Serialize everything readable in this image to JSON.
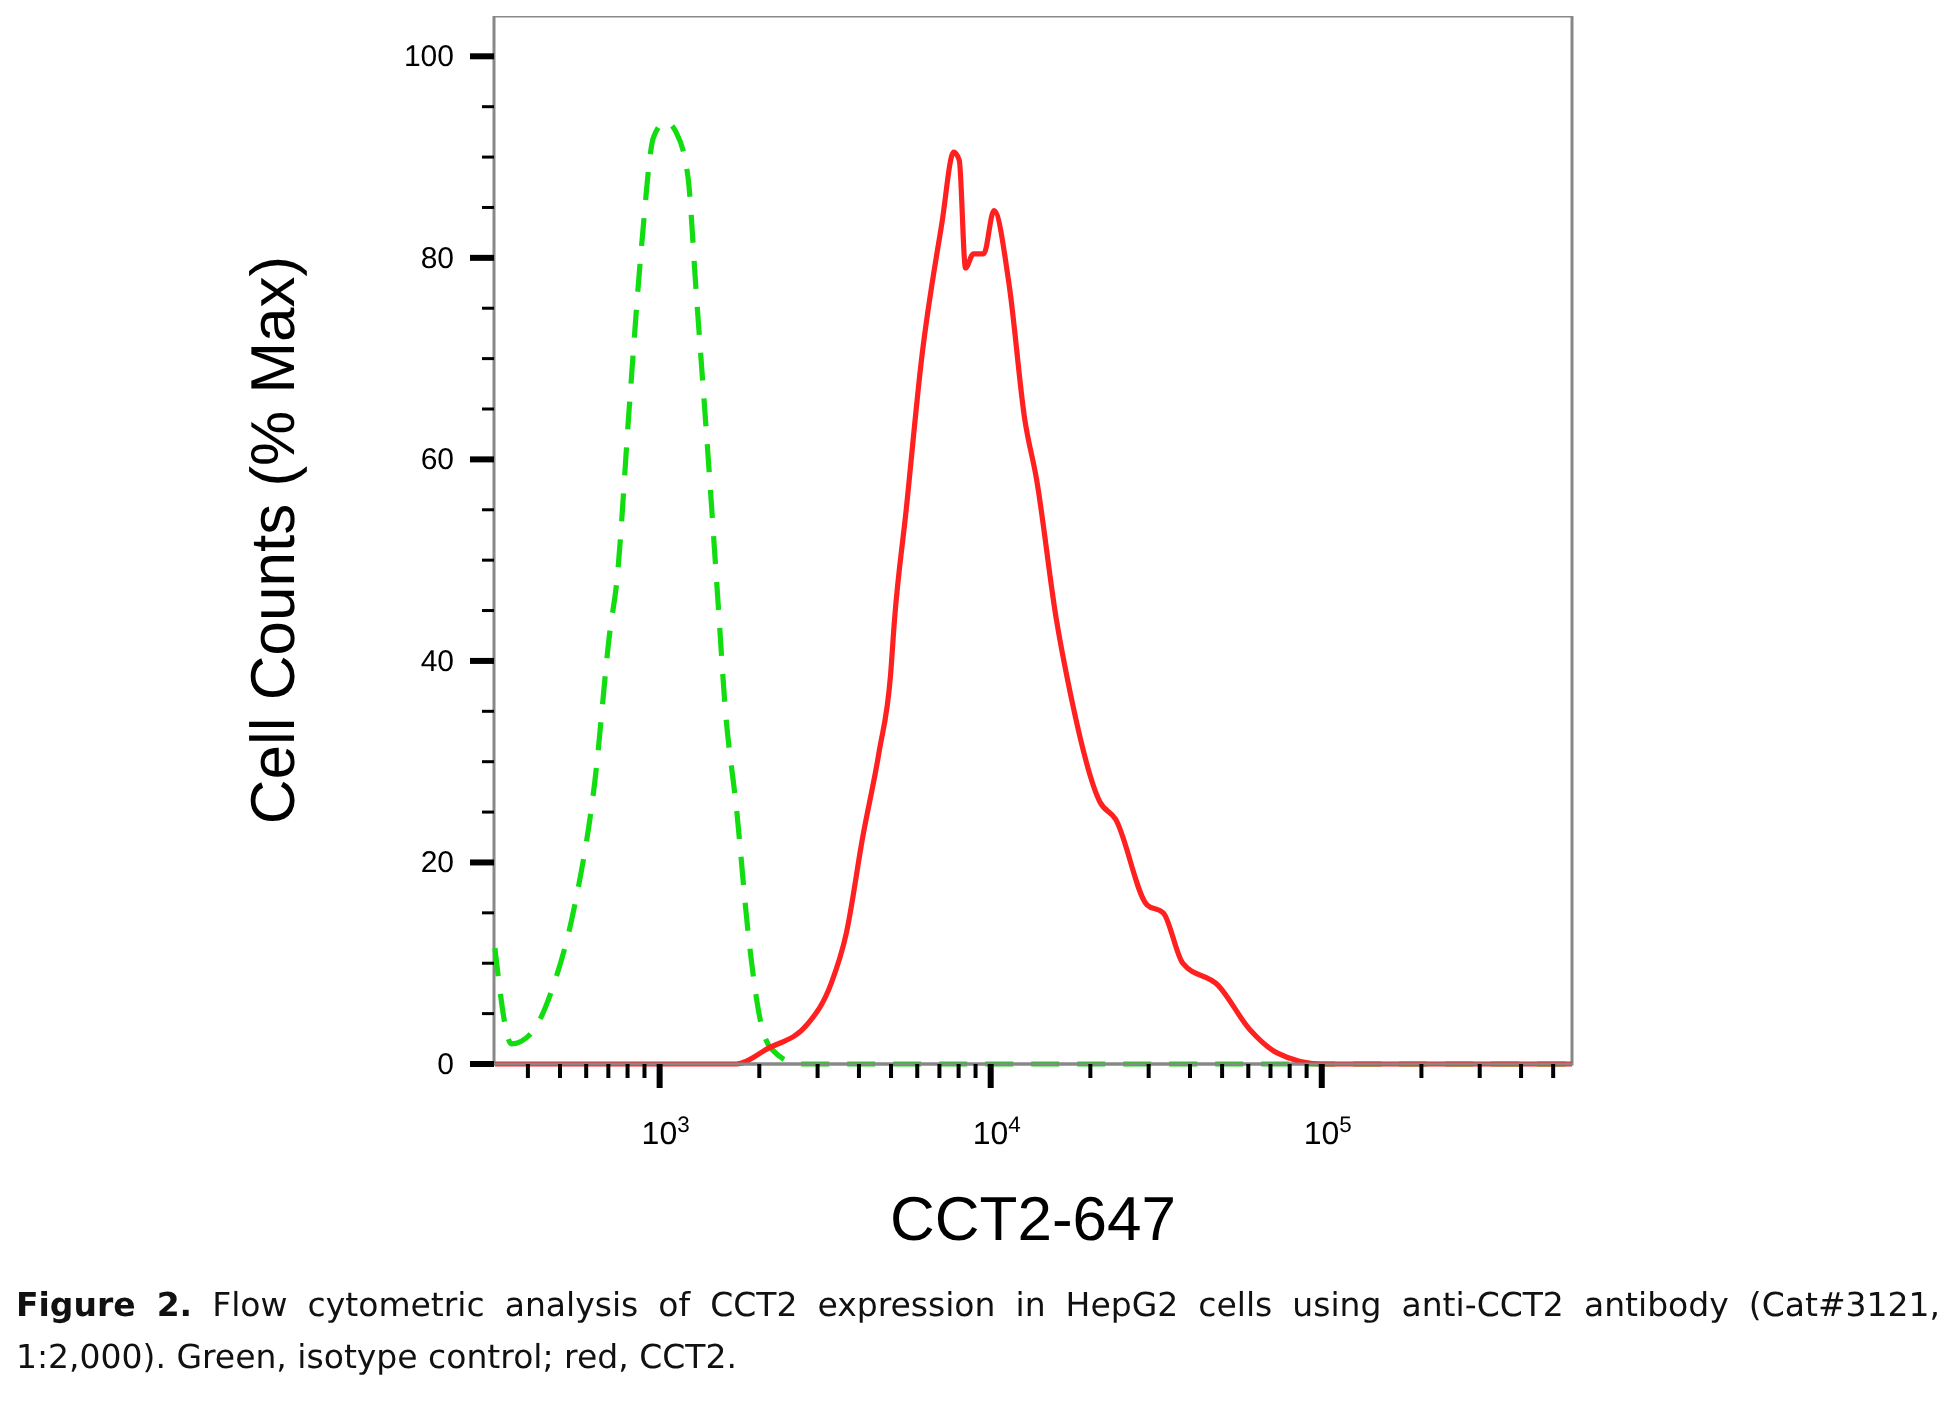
{
  "chart_data": {
    "type": "line",
    "log": "x",
    "xlabel": "CCT2-647",
    "ylabel": "Cell Counts (% Max)",
    "annotations": [
      "Figure 2. Flow cytometric analysis of CCT2 expression in HepG2 cells using anti-CCT2 antibody (Cat#3121, 1:2,000). Green, isotype control; red, CCT2."
    ],
    "xlim": [
      316,
      570000
    ],
    "ylim": [
      0,
      104
    ],
    "xticks": [
      {
        "value": 400,
        "label": null
      },
      {
        "value": 500,
        "label": null
      },
      {
        "value": 600,
        "label": null
      },
      {
        "value": 700,
        "label": null
      },
      {
        "value": 800,
        "label": null
      },
      {
        "value": 900,
        "label": null
      },
      {
        "value": 1000,
        "label": "10$^{3}$"
      },
      {
        "value": 2000,
        "label": null
      },
      {
        "value": 3000,
        "label": null
      },
      {
        "value": 4000,
        "label": null
      },
      {
        "value": 5000,
        "label": null
      },
      {
        "value": 6000,
        "label": null
      },
      {
        "value": 7000,
        "label": null
      },
      {
        "value": 8000,
        "label": null
      },
      {
        "value": 9000,
        "label": null
      },
      {
        "value": 10000,
        "label": "10$^{4}$"
      },
      {
        "value": 20000,
        "label": null
      },
      {
        "value": 30000,
        "label": null
      },
      {
        "value": 40000,
        "label": null
      },
      {
        "value": 50000,
        "label": null
      },
      {
        "value": 60000,
        "label": null
      },
      {
        "value": 70000,
        "label": null
      },
      {
        "value": 80000,
        "label": null
      },
      {
        "value": 90000,
        "label": null
      },
      {
        "value": 100000,
        "label": "10$^{5}$"
      },
      {
        "value": 200000,
        "label": null
      },
      {
        "value": 300000,
        "label": null
      },
      {
        "value": 400000,
        "label": null
      },
      {
        "value": 500000,
        "label": null
      }
    ],
    "yticks": [
      0,
      {
        "value": 5,
        "label": null
      },
      {
        "value": 10,
        "label": null
      },
      {
        "value": 15,
        "label": null
      },
      20,
      {
        "value": 25,
        "label": null
      },
      {
        "value": 30,
        "label": null
      },
      {
        "value": 35,
        "label": null
      },
      40,
      {
        "value": 45,
        "label": null
      },
      {
        "value": 50,
        "label": null
      },
      {
        "value": 55,
        "label": null
      },
      60,
      {
        "value": 65,
        "label": null
      },
      {
        "value": 70,
        "label": null
      },
      {
        "value": 75,
        "label": null
      },
      80,
      {
        "value": 85,
        "label": null
      },
      {
        "value": 90,
        "label": null
      },
      {
        "value": 95,
        "label": null
      },
      100
    ],
    "series": [
      {
        "color": "#11dd11",
        "line_style": "dashed",
        "x": [
          318,
          357,
          408,
          480,
          552,
          637,
          708,
          743,
          809,
          881,
          959,
          1043,
          1120,
          1218,
          1290,
          1403,
          1507,
          1572,
          1711,
          1851,
          2010,
          2175,
          2650,
          10000,
          100000,
          570000
        ],
        "values": [
          11.5,
          2,
          3,
          8,
          15.5,
          28,
          43,
          48,
          65,
          81,
          92,
          93.5,
          92.5,
          88,
          76.5,
          60,
          45,
          36,
          25,
          13,
          4.5,
          1.5,
          0,
          0,
          0,
          0
        ]
      },
      {
        "color": "#ff2020",
        "line_style": "solid",
        "x": [
          318,
          1706,
          2113,
          2805,
          3298,
          3665,
          4105,
          4603,
          4980,
          5120,
          5556,
          6185,
          7126,
          7731,
          8035,
          8395,
          8869,
          9528,
          10230,
          11360,
          12670,
          13760,
          15810,
          17100,
          21380,
          23830,
          29650,
          33210,
          38020,
          48640,
          60700,
          73280,
          99500,
          570000
        ],
        "values": [
          0,
          0,
          1.5,
          4,
          8,
          13,
          22.5,
          31,
          38.5,
          44,
          55,
          70,
          83.5,
          90.5,
          89.7,
          79,
          80.4,
          80.4,
          84.7,
          77.4,
          64,
          58,
          44,
          38,
          26,
          24.3,
          15.8,
          15,
          10,
          7.8,
          3.4,
          1.1,
          0,
          0
        ]
      }
    ]
  }
}
